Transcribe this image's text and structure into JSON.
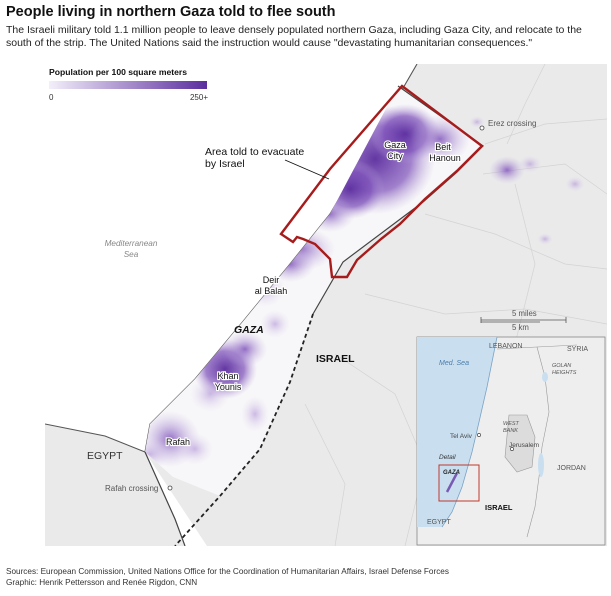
{
  "header": {
    "title": "People living in northern Gaza told to flee south",
    "subtitle": "The Israeli military told 1.1 million people to leave densely populated northern Gaza, including Gaza City, and relocate to the south of the strip. The United Nations said the instruction would cause \"devastating humanitarian consequences.\""
  },
  "legend": {
    "title": "Population per 100 square meters",
    "min_label": "0",
    "max_label": "250+",
    "color_low": "#f3effa",
    "color_high": "#5b2d9e"
  },
  "colors": {
    "evacuation_border": "#a61c1c",
    "land": "#eaeaea",
    "sea": "#ffffff",
    "strip_fill": "#f7f6f8"
  },
  "map": {
    "annotation_line1": "Area told to evacuate",
    "annotation_line2": "by Israel",
    "sea_label_line1": "Mediterranean",
    "sea_label_line2": "Sea",
    "gaza_label": "GAZA",
    "israel_label": "ISRAEL",
    "egypt_label": "EGYPT",
    "crossing_north": "Erez crossing",
    "crossing_south": "Rafah crossing",
    "cities": {
      "gaza_city_1": "Gaza",
      "gaza_city_2": "City",
      "beit_hanoun_1": "Beit",
      "beit_hanoun_2": "Hanoun",
      "deir_1": "Deir",
      "deir_2": "al Balah",
      "khan_1": "Khan",
      "khan_2": "Younis",
      "rafah": "Rafah"
    },
    "scale_miles": "5 miles",
    "scale_km": "5 km"
  },
  "inset": {
    "lebanon": "LEBANON",
    "syria": "SYRIA",
    "golan_1": "GOLAN",
    "golan_2": "HEIGHTS",
    "med_sea": "Med. Sea",
    "tel_aviv": "Tel Aviv",
    "west_1": "WEST",
    "west_2": "BANK",
    "jerusalem": "Jerusalem",
    "jordan": "JORDAN",
    "detail": "Detail",
    "gaza": "GAZA",
    "israel": "ISRAEL",
    "egypt": "EGYPT"
  },
  "footer": {
    "sources": "Sources: European Commission, United Nations Office for the Coordination of Humanitarian Affairs, Israel Defense Forces",
    "credit": "Graphic: Henrik Pettersson and Renée Rigdon, CNN"
  }
}
